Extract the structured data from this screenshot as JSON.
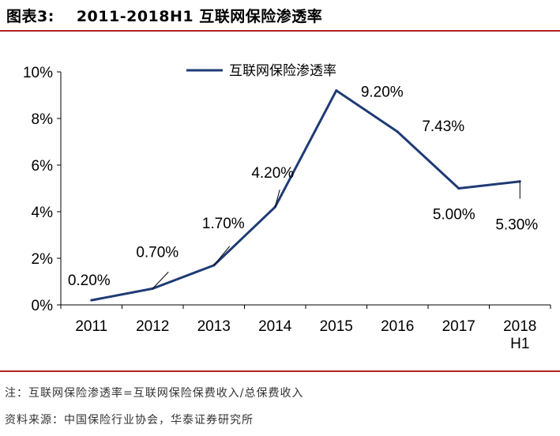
{
  "header": {
    "figure_label": "图表3:",
    "title": "2011-2018H1 互联网保险渗透率"
  },
  "chart_data": {
    "type": "line",
    "title": "",
    "xlabel": "",
    "ylabel": "",
    "categories": [
      "2011",
      "2012",
      "2013",
      "2014",
      "2015",
      "2016",
      "2017",
      "2018 H1"
    ],
    "category_lines": [
      [
        "2011"
      ],
      [
        "2012"
      ],
      [
        "2013"
      ],
      [
        "2014"
      ],
      [
        "2015"
      ],
      [
        "2016"
      ],
      [
        "2017"
      ],
      [
        "2018",
        "H1"
      ]
    ],
    "ylim": [
      0,
      10
    ],
    "yticks": [
      "0%",
      "2%",
      "4%",
      "6%",
      "8%",
      "10%"
    ],
    "series": [
      {
        "name": "互联网保险渗透率",
        "color": "#1f3b75",
        "values": [
          0.2,
          0.7,
          1.7,
          4.2,
          9.2,
          7.43,
          5.0,
          5.3
        ],
        "labels": [
          "0.20%",
          "0.70%",
          "1.70%",
          "4.20%",
          "9.20%",
          "7.43%",
          "5.00%",
          "5.30%"
        ]
      }
    ],
    "legend": "top-center",
    "grid": false
  },
  "footer": {
    "note": "注：互联网保险渗透率=互联网保险保费收入/总保费收入",
    "source": "资料来源：中国保险行业协会，华泰证券研究所"
  }
}
